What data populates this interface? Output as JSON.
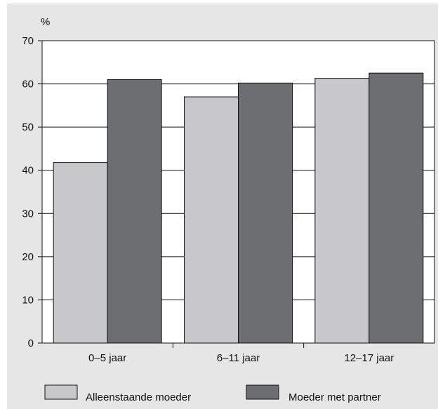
{
  "chart_data": {
    "type": "bar",
    "ylabel": "%",
    "ylim": [
      0,
      70
    ],
    "yticks": [
      0,
      10,
      20,
      30,
      40,
      50,
      60,
      70
    ],
    "categories": [
      "0–5 jaar",
      "6–11 jaar",
      "12–17 jaar"
    ],
    "series": [
      {
        "name": "Alleenstaande moeder",
        "values": [
          41.8,
          57.0,
          61.3
        ],
        "color": "#c8c8ca"
      },
      {
        "name": "Moeder met partner",
        "values": [
          61.0,
          60.2,
          62.5
        ],
        "color": "#6d6e71"
      }
    ],
    "grid": true,
    "legend_position": "bottom",
    "background_color": "#e6e6e7"
  }
}
